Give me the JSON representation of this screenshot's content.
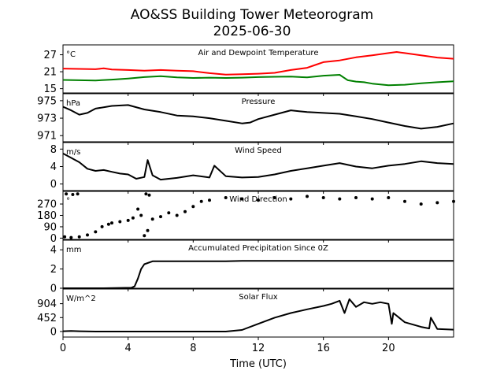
{
  "title_line1": "AO&SS Building Tower Meteorogram",
  "title_line2": "2025-06-30",
  "xlabel": "Time (UTC)",
  "chart_data": [
    {
      "type": "line",
      "title": "Air and Dewpoint Temperature",
      "unit": "°C",
      "xlim": [
        0,
        24
      ],
      "ylim": [
        13.5,
        30.5
      ],
      "yticks": [
        "15",
        "21",
        "27"
      ],
      "series": [
        {
          "color": "#ff0000",
          "x": [
            0,
            1,
            2,
            2.5,
            3,
            4,
            5,
            6,
            7,
            8,
            9,
            10,
            11,
            12,
            13,
            14,
            15,
            15.5,
            16,
            17,
            18,
            19,
            20,
            20.5,
            21,
            22,
            23,
            24
          ],
          "y": [
            22.1,
            22.0,
            21.9,
            22.2,
            21.8,
            21.6,
            21.4,
            21.6,
            21.4,
            21.2,
            20.5,
            20.0,
            20.1,
            20.3,
            20.6,
            21.6,
            22.4,
            23.4,
            24.4,
            25.0,
            26.1,
            26.8,
            27.6,
            28.0,
            27.6,
            26.8,
            26.0,
            25.6
          ]
        },
        {
          "color": "#008000",
          "x": [
            0,
            1,
            2,
            3,
            4,
            5,
            6,
            7,
            8,
            9,
            10,
            11,
            12,
            13,
            14,
            15,
            16,
            17,
            17.5,
            18,
            18.5,
            19,
            20,
            21,
            22,
            23,
            24
          ],
          "y": [
            18.1,
            18.0,
            17.9,
            18.2,
            18.6,
            19.1,
            19.4,
            19.0,
            18.8,
            18.9,
            18.8,
            18.9,
            19.1,
            19.2,
            19.3,
            19.0,
            19.6,
            19.9,
            18.0,
            17.5,
            17.3,
            16.8,
            16.2,
            16.4,
            16.9,
            17.3,
            17.6
          ]
        }
      ]
    },
    {
      "type": "line",
      "title": "Pressure",
      "unit": "hPa",
      "xlim": [
        0,
        24
      ],
      "ylim": [
        970.3,
        975.8
      ],
      "yticks": [
        "971",
        "973",
        "975"
      ],
      "series": [
        {
          "color": "#000000",
          "x": [
            0,
            0.5,
            1,
            1.5,
            2,
            3,
            4,
            5,
            6,
            7,
            8,
            9,
            10,
            11,
            11.5,
            12,
            13,
            14,
            15,
            16,
            17,
            18,
            19,
            20,
            21,
            22,
            23,
            24
          ],
          "y": [
            974.3,
            973.9,
            973.4,
            973.6,
            974.1,
            974.4,
            974.5,
            974.0,
            973.7,
            973.3,
            973.2,
            973.0,
            972.7,
            972.4,
            972.5,
            972.9,
            973.4,
            973.9,
            973.7,
            973.6,
            973.5,
            973.2,
            972.9,
            972.5,
            972.1,
            971.8,
            972.0,
            972.4
          ]
        }
      ]
    },
    {
      "type": "line",
      "title": "Wind Speed",
      "unit": "m/s",
      "xlim": [
        0,
        24
      ],
      "ylim": [
        -1.5,
        9.5
      ],
      "yticks": [
        "0",
        "4",
        "8"
      ],
      "series": [
        {
          "color": "#000000",
          "x": [
            0,
            0.5,
            1,
            1.5,
            2,
            2.5,
            3,
            3.5,
            4,
            4.5,
            5,
            5.2,
            5.5,
            6,
            7,
            8,
            9,
            9.3,
            10,
            11,
            12,
            13,
            14,
            15,
            16,
            17,
            18,
            19,
            20,
            21,
            22,
            23,
            24
          ],
          "y": [
            7.0,
            6.0,
            5.0,
            3.5,
            3.0,
            3.2,
            2.8,
            2.4,
            2.2,
            1.2,
            1.6,
            5.5,
            2.0,
            1.0,
            1.4,
            2.0,
            1.5,
            4.2,
            1.8,
            1.5,
            1.6,
            2.2,
            3.0,
            3.6,
            4.2,
            4.8,
            4.0,
            3.6,
            4.2,
            4.6,
            5.2,
            4.8,
            4.6
          ]
        }
      ]
    },
    {
      "type": "scatter",
      "title": "Wind Direction",
      "unit": "°",
      "xlim": [
        0,
        24
      ],
      "ylim": [
        -10,
        370
      ],
      "yticks": [
        "0",
        "90",
        "180",
        "270"
      ],
      "series": [
        {
          "color": "#000000",
          "x": [
            0.1,
            0.5,
            1.0,
            1.5,
            2.0,
            2.4,
            2.8,
            3.0,
            3.5,
            4.0,
            4.3,
            4.6,
            4.8,
            5.0,
            5.2,
            5.5,
            6.0,
            6.5,
            7.0,
            7.5,
            8.0,
            8.5,
            9.0,
            10.0,
            11.0,
            12.0,
            13.0,
            14.0,
            15.0,
            16.0,
            17.0,
            18.0,
            19.0,
            20.0,
            21.0,
            22.0,
            23.0,
            24.0,
            0.2,
            0.6,
            0.9,
            5.1,
            5.3
          ],
          "y": [
            10,
            5,
            10,
            25,
            50,
            90,
            110,
            120,
            130,
            140,
            160,
            230,
            180,
            20,
            60,
            150,
            170,
            200,
            180,
            210,
            250,
            290,
            300,
            320,
            310,
            300,
            320,
            310,
            330,
            320,
            310,
            320,
            310,
            320,
            290,
            270,
            280,
            290,
            350,
            345,
            350,
            350,
            340
          ]
        }
      ]
    },
    {
      "type": "line",
      "title": "Accumulated Precipitation Since 0Z",
      "unit": "mm",
      "xlim": [
        0,
        24
      ],
      "ylim": [
        0,
        5
      ],
      "yticks": [
        "0",
        "2",
        "4"
      ],
      "series": [
        {
          "color": "#000000",
          "x": [
            0,
            2.5,
            4.2,
            4.4,
            4.6,
            4.8,
            5.0,
            5.5,
            10,
            11,
            24
          ],
          "y": [
            0,
            0,
            0.05,
            0.2,
            1.0,
            2.0,
            2.5,
            2.8,
            2.8,
            2.85,
            2.85
          ]
        }
      ]
    },
    {
      "type": "line",
      "title": "Solar Flux",
      "unit": "W/m^2",
      "xlim": [
        0,
        24
      ],
      "ylim": [
        -180,
        1380
      ],
      "yticks": [
        "0",
        "452",
        "904"
      ],
      "series": [
        {
          "color": "#000000",
          "x": [
            0,
            0.5,
            1,
            2,
            4,
            6,
            8,
            10,
            11,
            12,
            13,
            14,
            15,
            16,
            16.5,
            17,
            17.3,
            17.6,
            18,
            18.5,
            19,
            19.5,
            20,
            20.2,
            20.3,
            21,
            22,
            22.5,
            22.6,
            23,
            24
          ],
          "y": [
            10,
            20,
            10,
            0,
            0,
            0,
            0,
            0,
            50,
            250,
            450,
            600,
            720,
            830,
            900,
            1000,
            600,
            1050,
            800,
            950,
            900,
            950,
            900,
            250,
            600,
            300,
            150,
            100,
            450,
            80,
            60
          ]
        }
      ]
    }
  ]
}
